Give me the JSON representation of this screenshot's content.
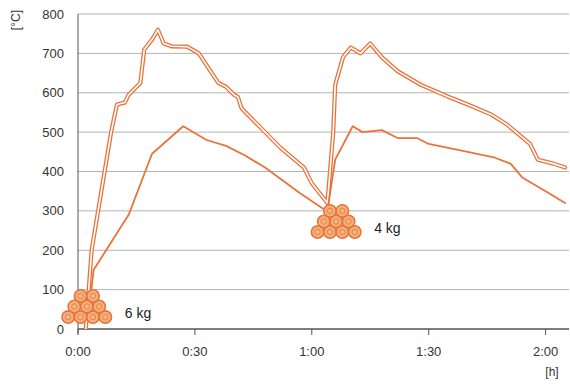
{
  "chart_data": {
    "type": "line",
    "x_label": "[h]",
    "y_label": "[°C]",
    "xlim": [
      0,
      126
    ],
    "xticks": [
      {
        "value": 0,
        "label": "0:00"
      },
      {
        "value": 30,
        "label": "0:30"
      },
      {
        "value": 60,
        "label": "1:00"
      },
      {
        "value": 90,
        "label": "1:30"
      },
      {
        "value": 120,
        "label": "2:00"
      }
    ],
    "ylim": [
      0,
      800
    ],
    "yticks": [
      0,
      100,
      200,
      300,
      400,
      500,
      600,
      700,
      800
    ],
    "grid": true,
    "series": [
      {
        "color": "#e8743b",
        "line_style": "double",
        "x": [
          2,
          3.5,
          6,
          8.5,
          10,
          12,
          13,
          16,
          17,
          19,
          20.5,
          22,
          24,
          28,
          31,
          36,
          38,
          40,
          41,
          42,
          48,
          52,
          58,
          60,
          64,
          65.5,
          66,
          68,
          70,
          72.5,
          75,
          78,
          82,
          88,
          95,
          100,
          106,
          110,
          113,
          116,
          118,
          122,
          125
        ],
        "values": [
          0,
          200,
          350,
          500,
          570,
          575,
          595,
          625,
          710,
          735,
          760,
          725,
          718,
          717,
          700,
          625,
          615,
          595,
          590,
          560,
          500,
          460,
          410,
          370,
          320,
          500,
          620,
          690,
          715,
          700,
          725,
          690,
          655,
          620,
          590,
          570,
          545,
          520,
          495,
          470,
          430,
          420,
          410
        ]
      },
      {
        "color": "#e8743b",
        "line_style": "solid",
        "x": [
          3,
          4,
          13,
          19,
          27,
          33,
          38,
          43,
          48,
          57,
          63,
          64,
          66,
          70.5,
          73,
          78,
          82,
          87,
          90,
          100,
          107,
          111,
          114,
          120,
          125
        ],
        "values": [
          60,
          150,
          290,
          445,
          515,
          480,
          465,
          440,
          410,
          345,
          305,
          300,
          430,
          515,
          500,
          505,
          485,
          485,
          470,
          450,
          435,
          420,
          385,
          350,
          320
        ]
      }
    ],
    "annotations": [
      {
        "text": "6 kg",
        "x": 12,
        "y": 40
      },
      {
        "text": "4 kg",
        "x": 76,
        "y": 256
      }
    ]
  }
}
